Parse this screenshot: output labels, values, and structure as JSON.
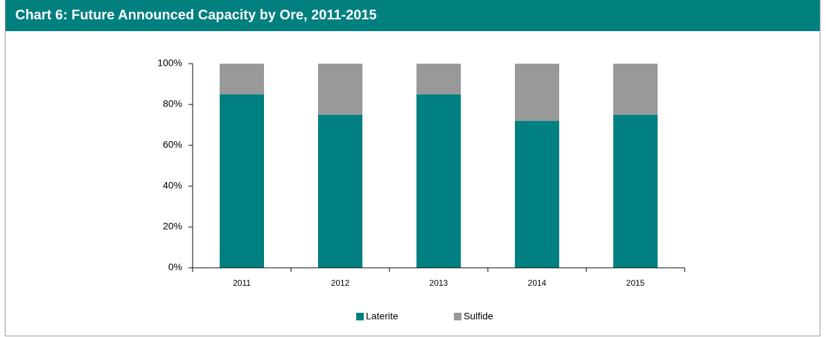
{
  "chart_data": {
    "type": "bar",
    "stacked": true,
    "title": "Chart 6: Future Announced Capacity by Ore, 2011-2015",
    "categories": [
      "2011",
      "2012",
      "2013",
      "2014",
      "2015"
    ],
    "series": [
      {
        "name": "Laterite",
        "color": "#008080",
        "values": [
          85,
          75,
          85,
          72,
          75
        ]
      },
      {
        "name": "Sulfide",
        "color": "#999999",
        "values": [
          15,
          25,
          15,
          28,
          25
        ]
      }
    ],
    "ylim": [
      0,
      100
    ],
    "yticks": [
      {
        "value": 0,
        "label": "0%"
      },
      {
        "value": 20,
        "label": "20%"
      },
      {
        "value": 40,
        "label": "40%"
      },
      {
        "value": 60,
        "label": "60%"
      },
      {
        "value": 80,
        "label": "80%"
      },
      {
        "value": 100,
        "label": "100%"
      }
    ],
    "legend": "bottom"
  }
}
